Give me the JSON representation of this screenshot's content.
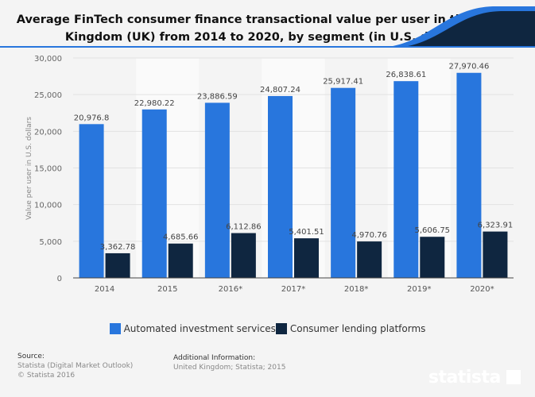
{
  "chart_data": {
    "type": "bar",
    "title": "Average FinTech consumer finance transactional value per user in the United Kingdom (UK) from 2014 to 2020, by segment (in U.S. dollars)",
    "xlabel": "",
    "ylabel": "Value per user in U.S. dollars",
    "ylim": [
      0,
      30000
    ],
    "yticks": [
      0,
      5000,
      10000,
      15000,
      20000,
      25000,
      30000
    ],
    "ytick_labels": [
      "0",
      "5,000",
      "10,000",
      "15,000",
      "20,000",
      "25,000",
      "30,000"
    ],
    "categories": [
      "2014",
      "2015",
      "2016*",
      "2017*",
      "2018*",
      "2019*",
      "2020*"
    ],
    "series": [
      {
        "name": "Automated investment services",
        "color": "#2876dd",
        "values": [
          20976.8,
          22980.22,
          23886.59,
          24807.24,
          25917.41,
          26838.61,
          27970.46
        ],
        "labels": [
          "20,976.8",
          "22,980.22",
          "23,886.59",
          "24,807.24",
          "25,917.41",
          "26,838.61",
          "27,970.46"
        ]
      },
      {
        "name": "Consumer lending platforms",
        "color": "#0f2640",
        "values": [
          3362.78,
          4685.66,
          6112.86,
          5401.51,
          4970.76,
          5606.75,
          6323.91
        ],
        "labels": [
          "3,362.78",
          "4,685.66",
          "6,112.86",
          "5,401.51",
          "4,970.76",
          "5,606.75",
          "6,323.91"
        ]
      }
    ],
    "legend_position": "bottom",
    "grid": true
  },
  "footer": {
    "source_heading": "Source:",
    "source_lines": [
      "Statista (Digital Market Outlook)",
      "© Statista 2016"
    ],
    "info_heading": "Additional Information:",
    "info_text": "United Kingdom; Statista; 2015",
    "logo": "statista"
  }
}
